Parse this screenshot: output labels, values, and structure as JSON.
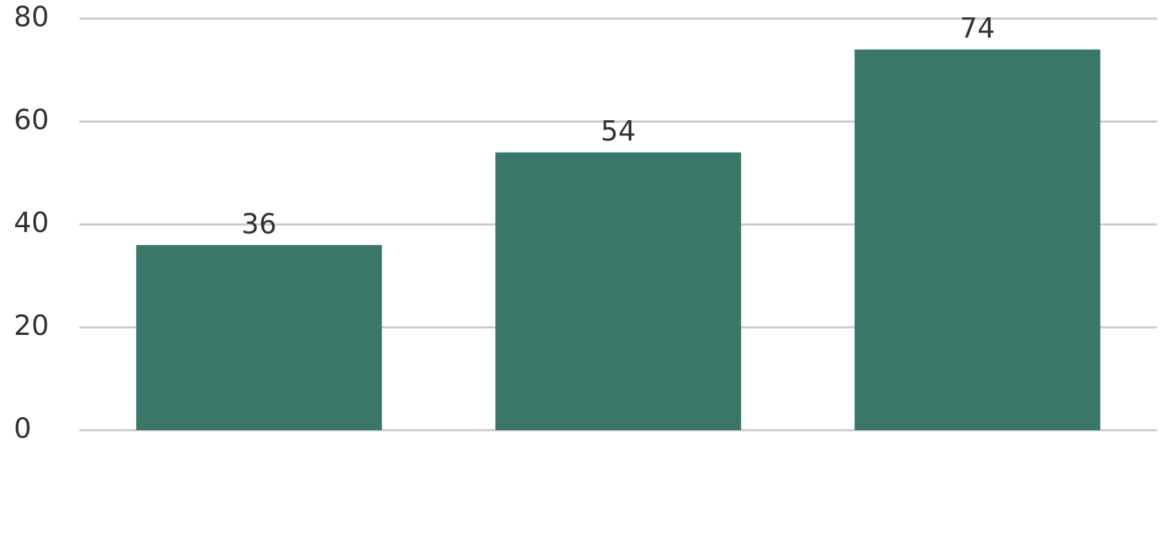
{
  "chart_data": {
    "type": "bar",
    "categories": [
      null,
      null,
      null
    ],
    "values": [
      36,
      54,
      74
    ],
    "color": "#3a7768",
    "ylim": [
      0,
      80
    ],
    "yticks": [
      0,
      20,
      40,
      60,
      80
    ],
    "grid": true
  }
}
